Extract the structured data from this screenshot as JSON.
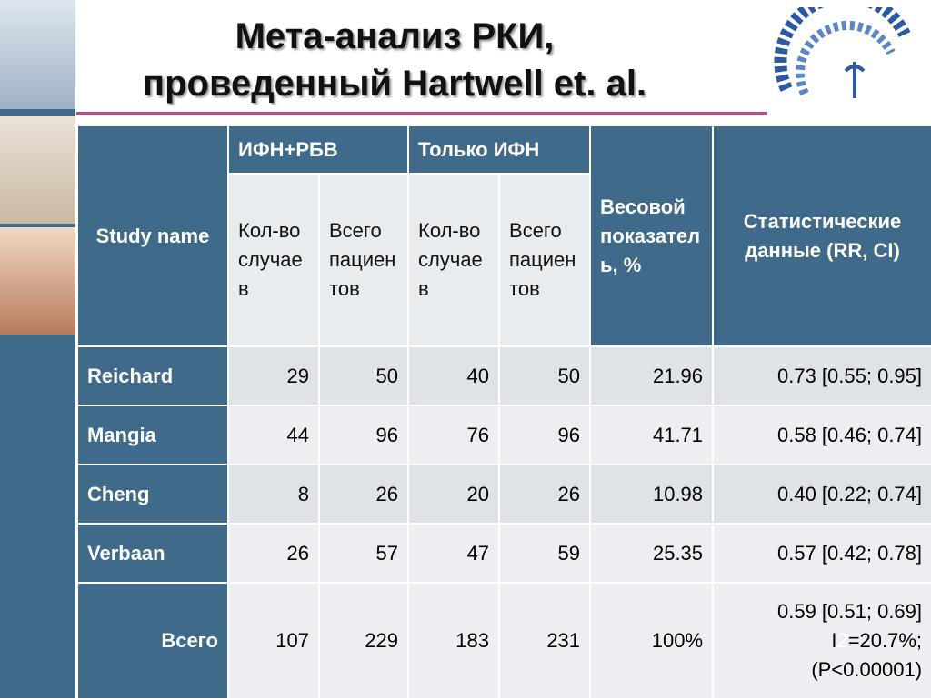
{
  "header": {
    "title": [
      "Мета-анализ РКИ,",
      "проведенный Hartwell et. al."
    ]
  },
  "table": {
    "study_header": "Study name",
    "group_headers": [
      "ИФН+РБВ",
      "Только ИФН"
    ],
    "sub_headers": [
      "Кол-во случаев",
      "Всего пациентов",
      "Кол-во случаев",
      "Всего пациентов"
    ],
    "weight_header": "Весовой показатель, %",
    "stats_header": "Статистические данные (RR, CI)",
    "rows": [
      [
        "Reichard",
        29,
        50,
        40,
        50,
        21.96,
        "0.73 [0.55; 0.95]"
      ],
      [
        "Mangia",
        44,
        96,
        76,
        96,
        41.71,
        "0.58 [0.46; 0.74]"
      ],
      [
        "Cheng",
        8,
        26,
        20,
        26,
        10.98,
        "0.40 [0.22; 0.74]"
      ],
      [
        "Verbaan",
        26,
        57,
        47,
        59,
        25.35,
        "0.57 [0.42; 0.78]"
      ]
    ],
    "total": {
      "label": "Всего",
      "values": [
        107,
        229,
        183,
        231
      ],
      "weight": "100%",
      "stats": "0.59 [0.51; 0.69]",
      "i_label": "I",
      "i_sup": "2",
      "i_value": "=20.7%;",
      "p": "(P<0.00001)"
    }
  }
}
